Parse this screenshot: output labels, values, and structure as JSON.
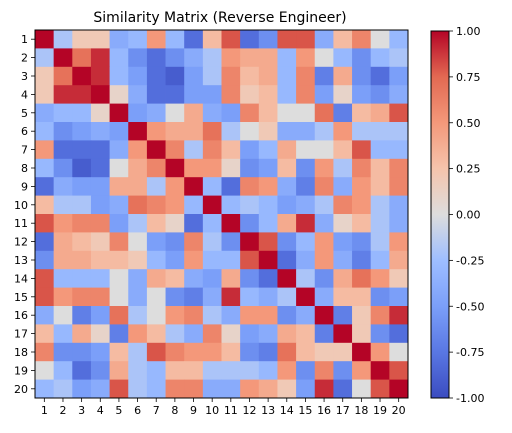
{
  "chart_data": {
    "type": "heatmap",
    "title": "Similarity Matrix (Reverse Engineer)",
    "xlabel": "",
    "ylabel": "",
    "row_labels": [
      "1",
      "2",
      "3",
      "4",
      "5",
      "6",
      "7",
      "8",
      "9",
      "10",
      "11",
      "12",
      "13",
      "14",
      "15",
      "16",
      "17",
      "18",
      "19",
      "20"
    ],
    "col_labels": [
      "1",
      "2",
      "3",
      "4",
      "5",
      "6",
      "7",
      "8",
      "9",
      "10",
      "11",
      "12",
      "13",
      "14",
      "15",
      "16",
      "17",
      "18",
      "19",
      "20"
    ],
    "colormap": "coolwarm",
    "colorbar": {
      "vmin": -1.0,
      "vmax": 1.0,
      "ticks": [
        "1.00",
        "0.75",
        "0.50",
        "0.25",
        "0.00",
        "-0.25",
        "-0.50",
        "-0.75",
        "-1.00"
      ],
      "tick_values": [
        1.0,
        0.75,
        0.5,
        0.25,
        0.0,
        -0.25,
        -0.5,
        -0.75,
        -1.0
      ]
    },
    "grid": false,
    "values": [
      [
        1.0,
        -0.2,
        0.2,
        0.2,
        -0.4,
        -0.3,
        0.5,
        -0.3,
        -0.8,
        0.3,
        0.8,
        -0.8,
        -0.6,
        0.8,
        0.8,
        -0.4,
        0.3,
        0.6,
        0.0,
        -0.3
      ],
      [
        -0.2,
        1.0,
        0.7,
        0.9,
        -0.3,
        -0.6,
        -0.8,
        -0.6,
        -0.4,
        -0.2,
        0.5,
        0.4,
        0.4,
        -0.3,
        0.5,
        0.0,
        -0.3,
        -0.6,
        -0.3,
        -0.2
      ],
      [
        0.2,
        0.7,
        1.0,
        0.9,
        -0.3,
        -0.5,
        -0.8,
        -0.9,
        -0.5,
        -0.2,
        0.6,
        0.3,
        0.4,
        -0.3,
        0.6,
        -0.7,
        0.4,
        -0.6,
        -0.8,
        -0.5
      ],
      [
        0.2,
        0.9,
        0.9,
        1.0,
        0.1,
        -0.4,
        -0.8,
        -0.8,
        -0.5,
        -0.5,
        0.6,
        0.2,
        0.3,
        -0.3,
        0.6,
        -0.5,
        0.1,
        -0.5,
        -0.6,
        -0.4
      ],
      [
        -0.4,
        -0.3,
        -0.3,
        0.1,
        1.0,
        -0.5,
        -0.4,
        0.0,
        0.4,
        -0.4,
        -0.5,
        0.6,
        0.3,
        0.0,
        0.0,
        0.7,
        -0.7,
        0.3,
        0.4,
        0.8
      ],
      [
        -0.3,
        -0.6,
        -0.5,
        -0.4,
        -0.5,
        1.0,
        0.5,
        0.4,
        0.4,
        0.7,
        -0.2,
        0.0,
        0.2,
        -0.4,
        -0.4,
        -0.2,
        0.5,
        -0.2,
        -0.2,
        -0.2
      ],
      [
        0.5,
        -0.8,
        -0.8,
        -0.8,
        -0.4,
        0.5,
        1.0,
        0.6,
        -0.2,
        0.6,
        0.3,
        -0.5,
        -0.3,
        0.4,
        0.0,
        0.0,
        0.3,
        0.8,
        -0.3,
        -0.3
      ],
      [
        -0.3,
        -0.6,
        -0.9,
        -0.8,
        0.0,
        0.4,
        0.6,
        1.0,
        0.5,
        0.5,
        0.1,
        -0.6,
        -0.5,
        0.3,
        -0.6,
        0.5,
        -0.2,
        0.6,
        0.3,
        0.6
      ],
      [
        -0.8,
        -0.4,
        -0.5,
        -0.5,
        0.4,
        0.4,
        -0.2,
        0.5,
        1.0,
        -0.3,
        -0.8,
        0.6,
        0.5,
        -0.4,
        -0.7,
        0.6,
        -0.4,
        0.5,
        0.3,
        0.6
      ],
      [
        0.3,
        -0.2,
        -0.2,
        -0.5,
        -0.4,
        0.7,
        0.6,
        0.5,
        -0.3,
        1.0,
        -0.3,
        -0.2,
        -0.3,
        -0.5,
        -0.4,
        -0.2,
        0.6,
        0.5,
        -0.2,
        -0.4
      ],
      [
        0.8,
        0.5,
        0.6,
        0.6,
        -0.5,
        -0.2,
        0.3,
        0.1,
        -0.8,
        -0.3,
        1.0,
        -0.6,
        -0.3,
        0.4,
        0.9,
        -0.4,
        0.1,
        0.3,
        -0.2,
        -0.4
      ],
      [
        -0.8,
        0.4,
        0.3,
        0.2,
        0.6,
        0.0,
        -0.5,
        -0.6,
        0.6,
        -0.2,
        -0.6,
        1.0,
        0.8,
        -0.6,
        -0.3,
        0.5,
        -0.5,
        -0.6,
        -0.2,
        0.5
      ],
      [
        -0.6,
        0.4,
        0.4,
        0.3,
        0.3,
        0.2,
        -0.3,
        -0.5,
        0.5,
        -0.3,
        -0.3,
        0.8,
        1.0,
        -0.8,
        -0.4,
        0.5,
        -0.4,
        -0.7,
        -0.3,
        0.4
      ],
      [
        0.8,
        -0.3,
        -0.3,
        -0.3,
        0.0,
        -0.4,
        0.4,
        0.3,
        -0.4,
        -0.5,
        0.4,
        -0.6,
        -0.8,
        1.0,
        -0.2,
        -0.6,
        0.4,
        0.7,
        0.5,
        0.2
      ],
      [
        0.8,
        0.5,
        0.6,
        0.6,
        0.0,
        -0.4,
        0.0,
        -0.6,
        -0.7,
        -0.4,
        0.9,
        -0.3,
        -0.4,
        -0.2,
        1.0,
        -0.4,
        0.3,
        0.3,
        -0.6,
        -0.5
      ],
      [
        -0.4,
        0.0,
        -0.7,
        -0.5,
        0.7,
        -0.2,
        0.0,
        0.5,
        0.6,
        -0.2,
        -0.4,
        0.5,
        0.5,
        -0.6,
        -0.4,
        1.0,
        -0.7,
        0.2,
        0.6,
        0.9
      ],
      [
        0.3,
        -0.3,
        0.4,
        0.1,
        -0.7,
        0.5,
        0.3,
        -0.2,
        -0.4,
        0.6,
        0.1,
        -0.5,
        -0.4,
        0.4,
        0.3,
        -0.7,
        1.0,
        0.2,
        -0.6,
        -0.8
      ],
      [
        0.6,
        -0.6,
        -0.6,
        -0.5,
        0.3,
        -0.2,
        0.8,
        0.6,
        0.5,
        0.5,
        0.3,
        -0.6,
        -0.7,
        0.7,
        0.3,
        0.2,
        0.2,
        1.0,
        0.5,
        0.0
      ],
      [
        0.0,
        -0.3,
        -0.8,
        -0.6,
        0.4,
        -0.2,
        -0.3,
        0.3,
        0.3,
        -0.2,
        -0.2,
        -0.2,
        -0.3,
        0.5,
        -0.6,
        0.6,
        -0.6,
        0.5,
        1.0,
        0.8
      ],
      [
        -0.3,
        -0.2,
        -0.5,
        -0.4,
        0.8,
        -0.2,
        -0.3,
        0.6,
        0.6,
        -0.4,
        -0.4,
        0.5,
        0.4,
        0.2,
        -0.5,
        0.9,
        -0.8,
        0.0,
        0.8,
        1.0
      ]
    ]
  }
}
